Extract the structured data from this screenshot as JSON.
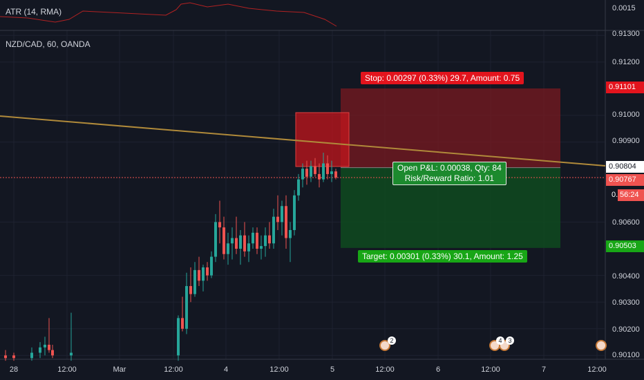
{
  "indicator": {
    "title": "ATR (14, RMA)"
  },
  "symbol": {
    "title": "NZD/CAD, 60, OANDA"
  },
  "price_axis": {
    "atr_tick": "0.0015",
    "ticks": [
      "0.91300",
      "0.91200",
      "0.91000",
      "0.90900",
      "0.90600",
      "0.90400",
      "0.90300",
      "0.90200",
      "0.90100"
    ],
    "tick_values": [
      0.913,
      0.912,
      0.91,
      0.909,
      0.906,
      0.904,
      0.903,
      0.902,
      0.901
    ],
    "stop_level": "0.91101",
    "trend_level": "0.90804",
    "current_price": "0.90767",
    "countdown": "56:24",
    "target_level": "0.90503",
    "countdown_prefix": "0."
  },
  "time_axis": {
    "labels": [
      "28",
      "12:00",
      "Mar",
      "12:00",
      "4",
      "12:00",
      "5",
      "12:00",
      "6",
      "12:00",
      "7",
      "12:00"
    ]
  },
  "position": {
    "stop_text": "Stop: 0.00297 (0.33%) 29.7, Amount: 0.75",
    "target_text": "Target: 0.00301 (0.33%) 30.1, Amount: 1.25",
    "pnl_line1": "Open P&L: 0.00038, Qty: 84",
    "pnl_line2": "Risk/Reward Ratio: 1.01",
    "entry": 0.90804,
    "stop": 0.91101,
    "target": 0.90503
  },
  "events": {
    "counts": [
      "2",
      "4",
      "3"
    ]
  },
  "colors": {
    "background": "#131722",
    "up": "#26a69a",
    "down": "#ef5350",
    "stop_zone": "#7a1a20",
    "target_zone": "#0f4a1f",
    "trendline": "#b08a3a",
    "atr_line": "#b22222"
  }
}
